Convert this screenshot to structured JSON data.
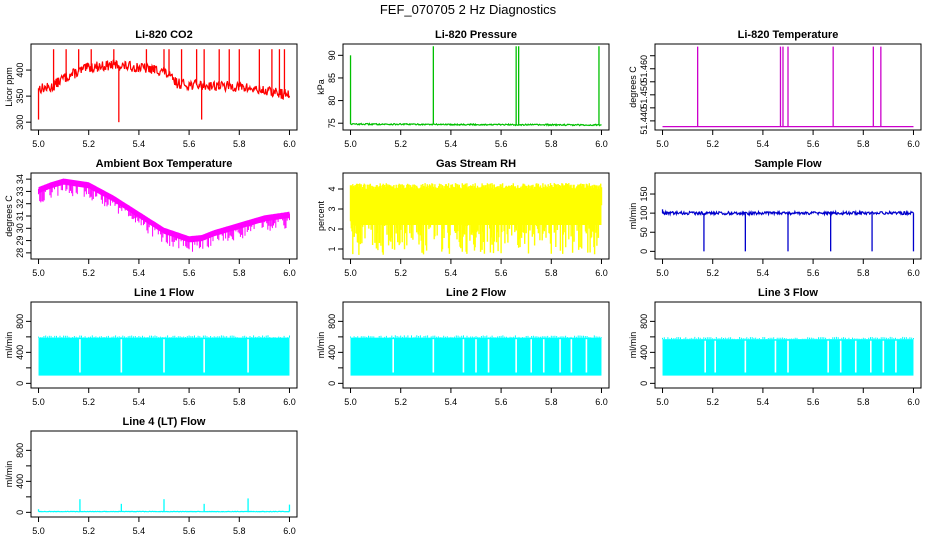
{
  "page_title": "FEF_070705  2 Hz Diagnostics",
  "chart_data": [
    {
      "type": "line",
      "title": "Li-820 CO2",
      "ylabel": "Licor ppm",
      "color": "#ff0000",
      "xlim": [
        4.97,
        6.03
      ],
      "ylim": [
        285,
        450
      ],
      "x_ticks": [
        "5.0",
        "5.2",
        "5.4",
        "5.6",
        "5.8",
        "6.0"
      ],
      "y_ticks": [
        "300",
        "350",
        "400"
      ],
      "series": [
        {
          "name": "Licor ppm",
          "style": "noisy",
          "baseline_x": [
            5.0,
            5.05,
            5.1,
            5.2,
            5.3,
            5.4,
            5.5,
            5.55,
            5.6,
            5.7,
            5.8,
            5.9,
            6.0
          ],
          "baseline_y": [
            365,
            366,
            385,
            405,
            410,
            405,
            398,
            375,
            372,
            370,
            368,
            360,
            352
          ],
          "noise": 10,
          "spikes_x": [
            5.0,
            5.06,
            5.11,
            5.16,
            5.21,
            5.3,
            5.43,
            5.5,
            5.52,
            5.57,
            5.63,
            5.66,
            5.72,
            5.76,
            5.8,
            5.88,
            5.93,
            5.96,
            5.98
          ],
          "spikes_y": [
            305,
            440,
            440,
            440,
            440,
            440,
            440,
            440,
            440,
            440,
            440,
            440,
            440,
            440,
            440,
            440,
            440,
            440,
            440
          ],
          "dips_x": [
            5.32,
            5.65
          ],
          "dips_y": [
            300,
            305
          ]
        }
      ]
    },
    {
      "type": "line",
      "title": "Li-820 Pressure",
      "ylabel": "kPa",
      "color": "#00c000",
      "xlim": [
        4.97,
        6.03
      ],
      "ylim": [
        73.5,
        92.5
      ],
      "x_ticks": [
        "5.0",
        "5.2",
        "5.4",
        "5.6",
        "5.8",
        "6.0"
      ],
      "y_ticks": [
        "75",
        "80",
        "85",
        "90"
      ],
      "series": [
        {
          "name": "kPa",
          "style": "flat",
          "baseline_x": [
            5.0,
            6.0
          ],
          "baseline_y": [
            74.8,
            74.6
          ],
          "noise": 0.15,
          "spikes_x": [
            5.0,
            5.33,
            5.66,
            5.67,
            5.99
          ],
          "spikes_y": [
            90,
            92,
            92,
            92,
            92
          ]
        }
      ]
    },
    {
      "type": "line",
      "title": "Li-820 Temperature",
      "ylabel": "degrees C",
      "color": "#cc00cc",
      "xlim": [
        4.97,
        6.03
      ],
      "ylim": [
        51.4365,
        51.4695
      ],
      "x_ticks": [
        "5.0",
        "5.2",
        "5.4",
        "5.6",
        "5.8",
        "6.0"
      ],
      "y_ticks": [
        "51.440",
        "51.445",
        "51.450",
        "51.455",
        "51.460",
        "51.465"
      ],
      "y_tick_label_values": [
        "51.440",
        "51.450",
        "51.460"
      ],
      "series": [
        {
          "name": "degrees C",
          "style": "flat",
          "baseline_x": [
            5.0,
            6.0
          ],
          "baseline_y": [
            51.4378,
            51.4378
          ],
          "noise": 0,
          "spikes_x": [
            5.14,
            5.47,
            5.48,
            5.5,
            5.68,
            5.84,
            5.87
          ],
          "spikes_y": [
            51.4685,
            51.4685,
            51.4685,
            51.4685,
            51.4685,
            51.4685,
            51.4685
          ]
        }
      ]
    },
    {
      "type": "line",
      "title": "Ambient Box Temperature",
      "ylabel": "degrees C",
      "color": "#ff00ff",
      "xlim": [
        4.97,
        6.03
      ],
      "ylim": [
        27.5,
        34.5
      ],
      "x_ticks": [
        "5.0",
        "5.2",
        "5.4",
        "5.6",
        "5.8",
        "6.0"
      ],
      "y_ticks": [
        "28",
        "29",
        "30",
        "31",
        "32",
        "33",
        "34"
      ],
      "series": [
        {
          "name": "degrees C",
          "style": "band_down",
          "baseline_x": [
            5.0,
            5.05,
            5.1,
            5.2,
            5.3,
            5.4,
            5.5,
            5.6,
            5.65,
            5.7,
            5.8,
            5.9,
            6.0
          ],
          "baseline_y": [
            33.2,
            33.6,
            33.9,
            33.6,
            32.5,
            31.2,
            29.9,
            29.2,
            29.3,
            29.7,
            30.3,
            30.9,
            31.2
          ],
          "noise": 0.6
        }
      ]
    },
    {
      "type": "line",
      "title": "Gas Stream RH",
      "ylabel": "percent",
      "color": "#ffff00",
      "xlim": [
        4.97,
        6.03
      ],
      "ylim": [
        0.5,
        4.8
      ],
      "x_ticks": [
        "5.0",
        "5.2",
        "5.4",
        "5.6",
        "5.8",
        "6.0"
      ],
      "y_ticks": [
        "1",
        "2",
        "3",
        "4"
      ],
      "series": [
        {
          "name": "percent",
          "style": "band_rand",
          "baseline_x": [
            5.0,
            6.0
          ],
          "baseline_y": [
            4.3,
            4.3
          ],
          "low": 0.7,
          "noise": 0.15
        }
      ]
    },
    {
      "type": "line",
      "title": "Sample Flow",
      "ylabel": "ml/min",
      "color": "#0000cc",
      "xlim": [
        4.97,
        6.03
      ],
      "ylim": [
        -20,
        205
      ],
      "x_ticks": [
        "5.0",
        "5.2",
        "5.4",
        "5.6",
        "5.8",
        "6.0"
      ],
      "y_ticks": [
        "0",
        "50",
        "100",
        "150"
      ],
      "series": [
        {
          "name": "ml/min",
          "style": "flat",
          "baseline_x": [
            5.0,
            6.0
          ],
          "baseline_y": [
            100,
            100
          ],
          "noise": 4,
          "dips_x": [
            5.0,
            5.165,
            5.33,
            5.5,
            5.67,
            5.835,
            6.0
          ],
          "dips_y": [
            110,
            0,
            0,
            0,
            0,
            0,
            0
          ]
        }
      ]
    },
    {
      "type": "line",
      "title": "Line 1 Flow",
      "ylabel": "ml/min",
      "color": "#00ffff",
      "xlim": [
        4.97,
        6.03
      ],
      "ylim": [
        -60,
        1050
      ],
      "x_ticks": [
        "5.0",
        "5.2",
        "5.4",
        "5.6",
        "5.8",
        "6.0"
      ],
      "y_ticks": [
        "0",
        "200",
        "400",
        "600",
        "800"
      ],
      "y_tick_label_values": [
        "0",
        "400",
        "800"
      ],
      "series": [
        {
          "name": "ml/min",
          "style": "block",
          "high": 590,
          "low": 100,
          "gaps_x": [
            5.165,
            5.33,
            5.5,
            5.66,
            5.835
          ]
        }
      ]
    },
    {
      "type": "line",
      "title": "Line 2 Flow",
      "ylabel": "ml/min",
      "color": "#00ffff",
      "xlim": [
        4.97,
        6.03
      ],
      "ylim": [
        -60,
        1050
      ],
      "x_ticks": [
        "5.0",
        "5.2",
        "5.4",
        "5.6",
        "5.8",
        "6.0"
      ],
      "y_ticks": [
        "0",
        "200",
        "400",
        "600",
        "800"
      ],
      "y_tick_label_values": [
        "0",
        "400",
        "800"
      ],
      "series": [
        {
          "name": "ml/min",
          "style": "block",
          "high": 590,
          "low": 100,
          "gaps_x": [
            5.17,
            5.33,
            5.45,
            5.5,
            5.55,
            5.66,
            5.72,
            5.77,
            5.835,
            5.88,
            5.94
          ]
        }
      ]
    },
    {
      "type": "line",
      "title": "Line 3 Flow",
      "ylabel": "ml/min",
      "color": "#00ffff",
      "xlim": [
        4.97,
        6.03
      ],
      "ylim": [
        -60,
        1050
      ],
      "x_ticks": [
        "5.0",
        "5.2",
        "5.4",
        "5.6",
        "5.8",
        "6.0"
      ],
      "y_ticks": [
        "0",
        "200",
        "400",
        "600",
        "800"
      ],
      "y_tick_label_values": [
        "0",
        "400",
        "800"
      ],
      "series": [
        {
          "name": "ml/min",
          "style": "block",
          "high": 570,
          "low": 100,
          "gaps_x": [
            5.17,
            5.21,
            5.33,
            5.45,
            5.5,
            5.66,
            5.71,
            5.77,
            5.83,
            5.88,
            5.93
          ]
        }
      ]
    },
    {
      "type": "line",
      "title": "Line 4 (LT) Flow",
      "ylabel": "ml/min",
      "color": "#00ffff",
      "xlim": [
        4.97,
        6.03
      ],
      "ylim": [
        -60,
        1050
      ],
      "x_ticks": [
        "5.0",
        "5.2",
        "5.4",
        "5.6",
        "5.8",
        "6.0"
      ],
      "y_ticks": [
        "0",
        "200",
        "400",
        "600",
        "800"
      ],
      "y_tick_label_values": [
        "0",
        "400",
        "800"
      ],
      "series": [
        {
          "name": "ml/min",
          "style": "flat",
          "baseline_x": [
            5.0,
            6.0
          ],
          "baseline_y": [
            10,
            10
          ],
          "noise": 3,
          "spikes_x": [
            5.0,
            5.165,
            5.33,
            5.5,
            5.66,
            5.835,
            6.0
          ],
          "spikes_y": [
            40,
            170,
            110,
            170,
            110,
            180,
            100
          ]
        }
      ]
    }
  ]
}
